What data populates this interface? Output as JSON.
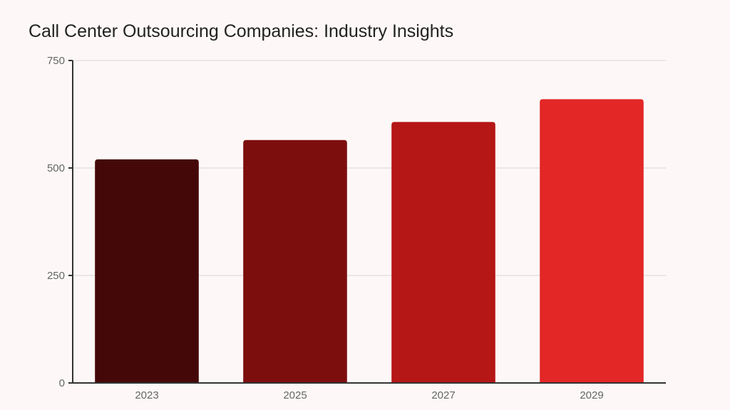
{
  "chart_data": {
    "type": "bar",
    "title": "Call Center Outsourcing Companies: Industry Insights",
    "xlabel": "",
    "ylabel": "",
    "categories": [
      "2023",
      "2025",
      "2027",
      "2029"
    ],
    "values": [
      520,
      565,
      607,
      660
    ],
    "colors": [
      "#450808",
      "#7d0e0e",
      "#b51616",
      "#e32626"
    ],
    "ylim": [
      0,
      750
    ],
    "yticks": [
      0,
      250,
      500,
      750
    ],
    "grid": true,
    "legend": "none"
  }
}
